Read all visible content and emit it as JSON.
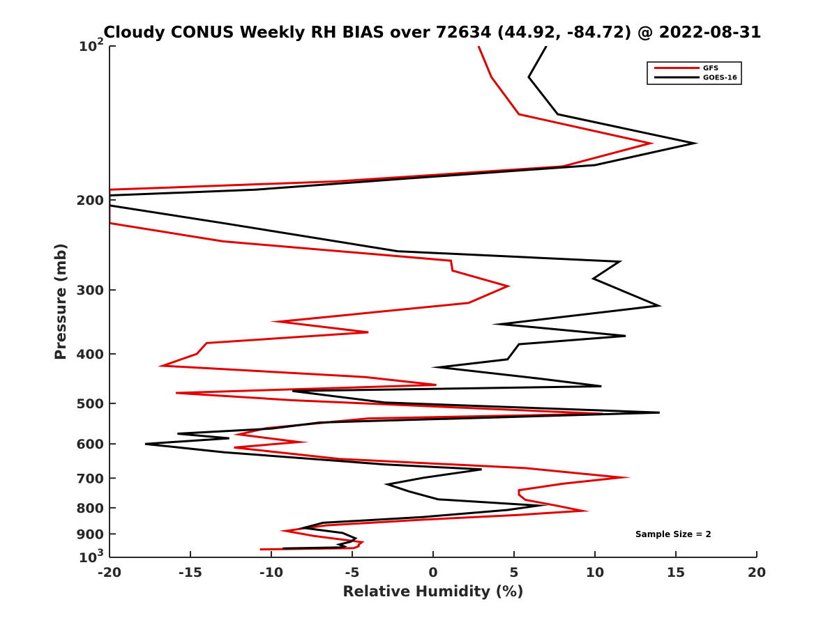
{
  "chart_data": {
    "type": "line",
    "title": "Cloudy CONUS Weekly RH BIAS over 72634 (44.92, -84.72) @ 2022-08-31",
    "xlabel": "Relative Humidity (%)",
    "ylabel": "Pressure (mb)",
    "xlim": [
      -20,
      20
    ],
    "ylim": [
      100,
      1000
    ],
    "y_scale": "log",
    "y_reversed": true,
    "x_ticks": [
      "-20",
      "-15",
      "-10",
      "-5",
      "0",
      "5",
      "10",
      "15",
      "20"
    ],
    "y_ticks": [
      {
        "value": 100,
        "label": "10",
        "sup": "2"
      },
      {
        "value": 200,
        "label": "200"
      },
      {
        "value": 300,
        "label": "300"
      },
      {
        "value": 400,
        "label": "400"
      },
      {
        "value": 500,
        "label": "500"
      },
      {
        "value": 600,
        "label": "600"
      },
      {
        "value": 700,
        "label": "700"
      },
      {
        "value": 800,
        "label": "800"
      },
      {
        "value": 900,
        "label": "900"
      },
      {
        "value": 1000,
        "label": "10",
        "sup": "3"
      }
    ],
    "grid": false,
    "legend_position": "top-right",
    "annotation": "Sample Size = 2",
    "series": [
      {
        "name": "GFS",
        "color": "#e00000",
        "x": [
          2.8,
          3.6,
          5.3,
          13.4,
          8,
          -6,
          -20,
          -20,
          -13,
          1.1,
          1.2,
          4.6,
          2.2,
          -9.5,
          -4,
          -14,
          -14.6,
          -16.7,
          -4.2,
          0.2,
          -15.9,
          -8.7,
          10.5,
          -4,
          -10.3,
          -12,
          -8.3,
          -12.3,
          -5.8,
          5.7,
          11.6,
          8,
          5.3,
          5.3,
          5.7,
          7.6,
          9.2,
          5.3,
          -0.6,
          -6.6,
          -7.8,
          -9.1,
          -7.4,
          -4.4,
          -4.6,
          -4.6,
          -4.7,
          -4.9,
          -10.7
        ],
        "y": [
          100,
          115,
          136,
          155,
          172,
          184,
          191,
          222,
          241,
          263,
          275,
          295,
          318,
          346,
          363,
          381,
          400,
          422,
          444,
          460,
          477,
          493,
          524,
          535,
          559,
          575,
          595,
          610,
          642,
          669,
          698,
          718,
          739,
          754,
          772,
          792,
          811,
          826,
          844,
          866,
          876,
          888,
          908,
          934,
          944,
          950,
          954,
          959,
          965
        ]
      },
      {
        "name": "GOES-16",
        "color": "#000000",
        "x": [
          7,
          5.9,
          7.7,
          16.1,
          10,
          -2,
          -11,
          -20,
          -20,
          -13,
          -2.2,
          11.5,
          9.9,
          13.9,
          4.2,
          11.9,
          5.3,
          4.6,
          0.4,
          6.5,
          10.4,
          -8.7,
          -3,
          14,
          -7,
          -10,
          -15.8,
          -12.6,
          -17.8,
          -12.9,
          -3,
          3,
          -0.6,
          -2.8,
          -1.5,
          0.3,
          6.5,
          4.6,
          -0.6,
          -6.8,
          -8,
          -5.6,
          -4.8,
          -5.1,
          -5.8,
          -5.5,
          -5.7,
          -9.3
        ],
        "y": [
          100,
          115,
          136,
          155,
          171,
          182,
          191,
          196,
          205,
          222,
          252,
          264,
          285,
          322,
          350,
          369,
          383,
          410,
          425,
          447,
          463,
          473,
          498,
          521,
          545,
          560,
          573,
          585,
          600,
          623,
          658,
          673,
          699,
          720,
          743,
          770,
          792,
          808,
          834,
          856,
          876,
          896,
          918,
          932,
          944,
          952,
          956,
          961
        ]
      }
    ]
  }
}
